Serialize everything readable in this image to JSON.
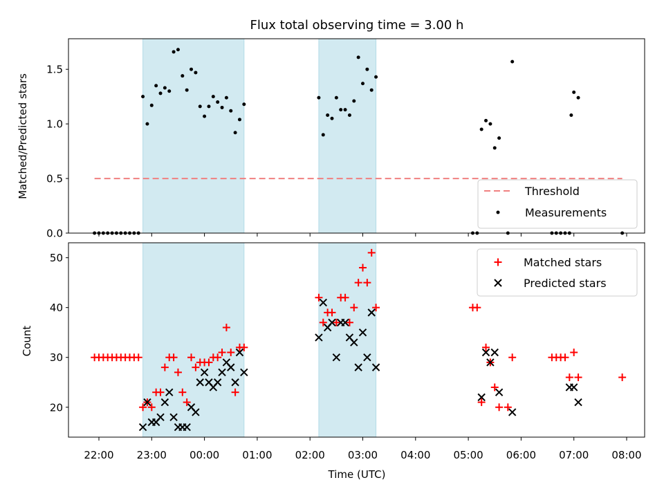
{
  "chart_data": {
    "type": "scatter",
    "title": "Flux total observing time = 3.00 h",
    "xlabel": "Time (UTC)",
    "x_ticks": [
      "22:00",
      "23:00",
      "00:00",
      "01:00",
      "02:00",
      "03:00",
      "04:00",
      "05:00",
      "06:00",
      "07:00",
      "08:00"
    ],
    "shaded_intervals": [
      [
        "22:50",
        "00:45"
      ],
      [
        "02:10",
        "03:15"
      ]
    ],
    "shade_color": "#add8e6",
    "panels": [
      {
        "ylabel": "Matched/Predicted stars",
        "ylim": [
          0,
          1.78
        ],
        "y_ticks": [
          0.0,
          0.5,
          1.0,
          1.5
        ],
        "y_tick_labels": [
          "0.0",
          "0.5",
          "1.0",
          "1.5"
        ],
        "threshold": {
          "name": "Threshold",
          "value": 0.5,
          "x_range": [
            "21:55",
            "07:55"
          ],
          "color": "#f08080",
          "style": "dashed"
        },
        "series": [
          {
            "name": "Measurements",
            "color": "#000000",
            "marker": "dot",
            "points": [
              [
                "21:55",
                0
              ],
              [
                "22:00",
                0
              ],
              [
                "22:05",
                0
              ],
              [
                "22:10",
                0
              ],
              [
                "22:15",
                0
              ],
              [
                "22:20",
                0
              ],
              [
                "22:25",
                0
              ],
              [
                "22:30",
                0
              ],
              [
                "22:35",
                0
              ],
              [
                "22:40",
                0
              ],
              [
                "22:45",
                0
              ],
              [
                "22:50",
                1.25
              ],
              [
                "22:55",
                1.0
              ],
              [
                "23:00",
                1.17
              ],
              [
                "23:05",
                1.35
              ],
              [
                "23:10",
                1.28
              ],
              [
                "23:15",
                1.33
              ],
              [
                "23:20",
                1.3
              ],
              [
                "23:25",
                1.66
              ],
              [
                "23:30",
                1.68
              ],
              [
                "23:35",
                1.44
              ],
              [
                "23:40",
                1.31
              ],
              [
                "23:45",
                1.5
              ],
              [
                "23:50",
                1.47
              ],
              [
                "23:55",
                1.16
              ],
              [
                "00:00",
                1.07
              ],
              [
                "00:05",
                1.16
              ],
              [
                "00:10",
                1.25
              ],
              [
                "00:15",
                1.2
              ],
              [
                "00:20",
                1.15
              ],
              [
                "00:25",
                1.24
              ],
              [
                "00:30",
                1.12
              ],
              [
                "00:35",
                0.92
              ],
              [
                "00:40",
                1.04
              ],
              [
                "00:45",
                1.18
              ],
              [
                "02:10",
                1.24
              ],
              [
                "02:15",
                0.9
              ],
              [
                "02:20",
                1.08
              ],
              [
                "02:25",
                1.05
              ],
              [
                "02:30",
                1.24
              ],
              [
                "02:35",
                1.13
              ],
              [
                "02:40",
                1.13
              ],
              [
                "02:45",
                1.08
              ],
              [
                "02:50",
                1.21
              ],
              [
                "02:55",
                1.61
              ],
              [
                "03:00",
                1.37
              ],
              [
                "03:05",
                1.5
              ],
              [
                "03:10",
                1.31
              ],
              [
                "03:15",
                1.43
              ],
              [
                "05:05",
                0
              ],
              [
                "05:10",
                0
              ],
              [
                "05:15",
                0.95
              ],
              [
                "05:20",
                1.03
              ],
              [
                "05:25",
                1.0
              ],
              [
                "05:30",
                0.78
              ],
              [
                "05:35",
                0.87
              ],
              [
                "05:45",
                0
              ],
              [
                "05:50",
                1.57
              ],
              [
                "06:35",
                0
              ],
              [
                "06:40",
                0
              ],
              [
                "06:45",
                0
              ],
              [
                "06:50",
                0
              ],
              [
                "06:55",
                0
              ],
              [
                "06:57",
                1.08
              ],
              [
                "07:00",
                1.29
              ],
              [
                "07:05",
                1.24
              ],
              [
                "07:55",
                0
              ]
            ]
          }
        ],
        "legend": {
          "placement": "bottom-right",
          "entries": [
            "Threshold",
            "Measurements"
          ]
        }
      },
      {
        "ylabel": "Count",
        "ylim": [
          14,
          53
        ],
        "y_ticks": [
          20,
          30,
          40,
          50
        ],
        "y_tick_labels": [
          "20",
          "30",
          "40",
          "50"
        ],
        "series": [
          {
            "name": "Matched stars",
            "color": "#ff0000",
            "marker": "plus",
            "points": [
              [
                "21:55",
                30
              ],
              [
                "22:00",
                30
              ],
              [
                "22:05",
                30
              ],
              [
                "22:10",
                30
              ],
              [
                "22:15",
                30
              ],
              [
                "22:20",
                30
              ],
              [
                "22:25",
                30
              ],
              [
                "22:30",
                30
              ],
              [
                "22:35",
                30
              ],
              [
                "22:40",
                30
              ],
              [
                "22:45",
                30
              ],
              [
                "22:50",
                20
              ],
              [
                "22:55",
                21
              ],
              [
                "23:00",
                20
              ],
              [
                "23:05",
                23
              ],
              [
                "23:10",
                23
              ],
              [
                "23:15",
                28
              ],
              [
                "23:20",
                30
              ],
              [
                "23:25",
                30
              ],
              [
                "23:30",
                27
              ],
              [
                "23:35",
                23
              ],
              [
                "23:40",
                21
              ],
              [
                "23:45",
                30
              ],
              [
                "23:50",
                28
              ],
              [
                "23:55",
                29
              ],
              [
                "00:00",
                29
              ],
              [
                "00:05",
                29
              ],
              [
                "00:10",
                30
              ],
              [
                "00:15",
                30
              ],
              [
                "00:20",
                31
              ],
              [
                "00:25",
                36
              ],
              [
                "00:30",
                31
              ],
              [
                "00:35",
                23
              ],
              [
                "00:40",
                32
              ],
              [
                "00:45",
                32
              ],
              [
                "02:10",
                42
              ],
              [
                "02:15",
                37
              ],
              [
                "02:20",
                39
              ],
              [
                "02:25",
                39
              ],
              [
                "02:30",
                37
              ],
              [
                "02:35",
                42
              ],
              [
                "02:40",
                42
              ],
              [
                "02:45",
                37
              ],
              [
                "02:50",
                40
              ],
              [
                "02:55",
                45
              ],
              [
                "03:00",
                48
              ],
              [
                "03:05",
                45
              ],
              [
                "03:10",
                51
              ],
              [
                "03:15",
                40
              ],
              [
                "05:05",
                40
              ],
              [
                "05:10",
                40
              ],
              [
                "05:15",
                21
              ],
              [
                "05:20",
                32
              ],
              [
                "05:25",
                29
              ],
              [
                "05:30",
                24
              ],
              [
                "05:35",
                20
              ],
              [
                "05:45",
                20
              ],
              [
                "05:50",
                30
              ],
              [
                "06:35",
                30
              ],
              [
                "06:40",
                30
              ],
              [
                "06:45",
                30
              ],
              [
                "06:50",
                30
              ],
              [
                "06:55",
                26
              ],
              [
                "07:00",
                31
              ],
              [
                "07:05",
                26
              ],
              [
                "07:55",
                26
              ]
            ]
          },
          {
            "name": "Predicted stars",
            "color": "#000000",
            "marker": "x",
            "points": [
              [
                "22:50",
                16
              ],
              [
                "22:55",
                21
              ],
              [
                "23:00",
                17
              ],
              [
                "23:05",
                17
              ],
              [
                "23:10",
                18
              ],
              [
                "23:15",
                21
              ],
              [
                "23:20",
                23
              ],
              [
                "23:25",
                18
              ],
              [
                "23:30",
                16
              ],
              [
                "23:35",
                16
              ],
              [
                "23:40",
                16
              ],
              [
                "23:45",
                20
              ],
              [
                "23:50",
                19
              ],
              [
                "23:55",
                25
              ],
              [
                "00:00",
                27
              ],
              [
                "00:05",
                25
              ],
              [
                "00:10",
                24
              ],
              [
                "00:15",
                25
              ],
              [
                "00:20",
                27
              ],
              [
                "00:25",
                29
              ],
              [
                "00:30",
                28
              ],
              [
                "00:35",
                25
              ],
              [
                "00:40",
                31
              ],
              [
                "00:45",
                27
              ],
              [
                "02:10",
                34
              ],
              [
                "02:15",
                41
              ],
              [
                "02:20",
                36
              ],
              [
                "02:25",
                37
              ],
              [
                "02:30",
                30
              ],
              [
                "02:35",
                37
              ],
              [
                "02:40",
                37
              ],
              [
                "02:45",
                34
              ],
              [
                "02:50",
                33
              ],
              [
                "02:55",
                28
              ],
              [
                "03:00",
                35
              ],
              [
                "03:05",
                30
              ],
              [
                "03:10",
                39
              ],
              [
                "03:15",
                28
              ],
              [
                "05:15",
                22
              ],
              [
                "05:20",
                31
              ],
              [
                "05:25",
                29
              ],
              [
                "05:30",
                31
              ],
              [
                "05:35",
                23
              ],
              [
                "05:50",
                19
              ],
              [
                "06:55",
                24
              ],
              [
                "07:00",
                24
              ],
              [
                "07:05",
                21
              ]
            ]
          }
        ],
        "legend": {
          "placement": "top-right",
          "entries": [
            "Matched stars",
            "Predicted stars"
          ]
        }
      }
    ]
  }
}
